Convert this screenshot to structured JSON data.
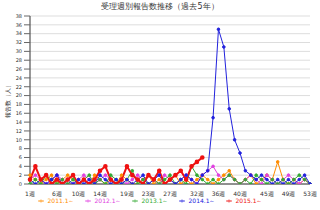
{
  "chart_data": {
    "type": "line",
    "title": "受理週別報告数推移（過去5年）",
    "y_label": "報告数（人）",
    "categories": [
      "1週",
      null,
      null,
      null,
      null,
      "6週",
      null,
      null,
      null,
      "10週",
      null,
      null,
      null,
      "14週",
      null,
      null,
      null,
      null,
      "19週",
      null,
      null,
      null,
      "23週",
      null,
      null,
      null,
      "27週",
      null,
      null,
      null,
      null,
      "32週",
      null,
      null,
      null,
      "36週",
      null,
      null,
      null,
      "40週",
      null,
      null,
      null,
      null,
      "45週",
      null,
      null,
      null,
      "49週",
      null,
      null,
      null,
      "53週"
    ],
    "series": [
      {
        "name": "2011.1～",
        "color": "#ff8c00",
        "marker": "circle",
        "values": [
          2,
          1,
          0,
          1,
          2,
          0,
          1,
          2,
          1,
          0,
          1,
          0,
          2,
          1,
          0,
          1,
          0,
          2,
          1,
          0,
          0,
          1,
          2,
          0,
          1,
          0,
          1,
          2,
          0,
          1,
          0,
          1,
          2,
          1,
          0,
          1,
          2,
          3,
          1,
          0,
          1,
          2,
          0,
          1,
          2,
          1,
          5,
          1,
          0,
          1,
          0,
          1,
          0
        ]
      },
      {
        "name": "2012.1～",
        "color": "#e040e0",
        "marker": "circle",
        "values": [
          1,
          2,
          1,
          0,
          1,
          2,
          1,
          0,
          0,
          1,
          2,
          1,
          0,
          1,
          2,
          1,
          0,
          1,
          0,
          1,
          2,
          1,
          0,
          1,
          0,
          2,
          1,
          0,
          1,
          2,
          1,
          0,
          2,
          3,
          4,
          2,
          1,
          2,
          1,
          0,
          1,
          2,
          1,
          0,
          2,
          1,
          0,
          1,
          2,
          1,
          0,
          1,
          0
        ]
      },
      {
        "name": "2013.1～",
        "color": "#33aa33",
        "marker": "circle",
        "values": [
          0,
          1,
          0,
          2,
          1,
          0,
          1,
          0,
          1,
          0,
          1,
          2,
          0,
          1,
          0,
          2,
          1,
          0,
          1,
          3,
          0,
          1,
          0,
          1,
          0,
          1,
          2,
          0,
          1,
          0,
          4,
          2,
          1,
          0,
          1,
          0,
          1,
          2,
          1,
          0,
          1,
          0,
          2,
          1,
          0,
          1,
          0,
          1,
          0,
          1,
          2,
          1,
          0
        ]
      },
      {
        "name": "2014.1～",
        "color": "#2222dd",
        "marker": "circle",
        "values": [
          1,
          0,
          1,
          0,
          1,
          2,
          0,
          1,
          0,
          1,
          0,
          1,
          0,
          2,
          1,
          0,
          1,
          0,
          1,
          0,
          1,
          2,
          0,
          1,
          2,
          0,
          1,
          0,
          1,
          2,
          1,
          0,
          2,
          3,
          15,
          35,
          31,
          17,
          10,
          7,
          3,
          2,
          1,
          2,
          1,
          0,
          1,
          0,
          1,
          0,
          1,
          2,
          0
        ]
      },
      {
        "name": "2015.1～",
        "color": "#ee1111",
        "marker": "circle",
        "values": [
          1,
          4,
          1,
          2,
          0,
          1,
          0,
          1,
          2,
          0,
          1,
          0,
          1,
          3,
          4,
          1,
          0,
          1,
          4,
          2,
          1,
          0,
          2,
          1,
          3,
          0,
          1,
          2,
          3,
          1,
          4,
          5,
          6,
          null,
          null,
          null,
          null,
          null,
          null,
          null,
          null,
          null,
          null,
          null,
          null,
          null,
          null,
          null,
          null,
          null,
          null,
          null,
          null
        ]
      }
    ],
    "ylim": [
      0,
      38
    ],
    "yticks": [
      0,
      2,
      4,
      6,
      8,
      10,
      12,
      14,
      16,
      18,
      20,
      22,
      24,
      26,
      28,
      30,
      32,
      34,
      36,
      38
    ],
    "grid": true,
    "legend": "bottom"
  }
}
